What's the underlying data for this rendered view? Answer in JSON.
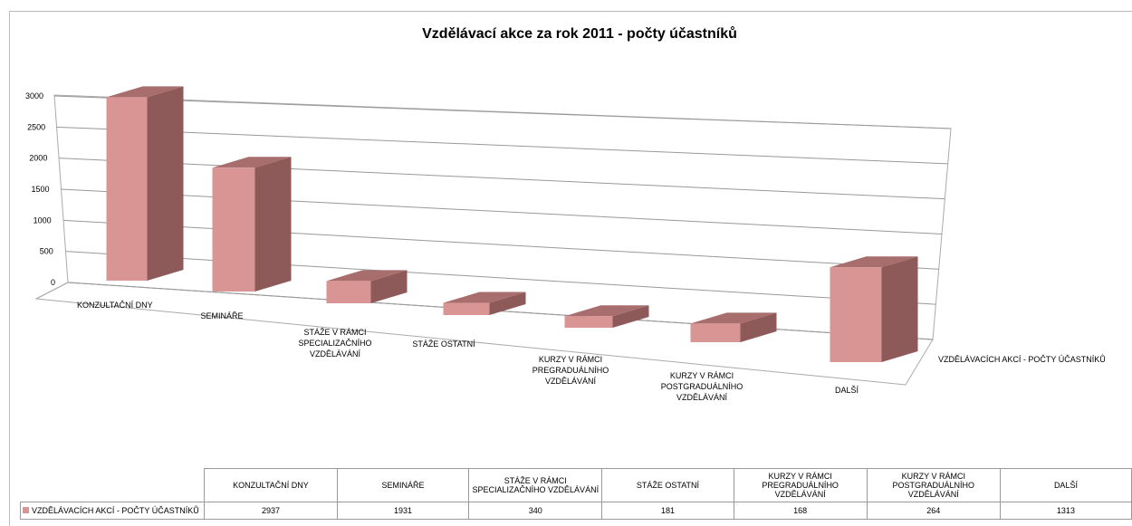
{
  "chart_data": {
    "type": "bar",
    "title": "Vzdělávací akce za rok 2011 - počty účastníků",
    "categories": [
      "KONZULTAČNÍ DNY",
      "SEMINÁŘE",
      "STÁŽE V RÁMCI SPECIALIZAČNÍHO VZDĚLÁVÁNÍ",
      "STÁŽE OSTATNÍ",
      "KURZY V RÁMCI PREGRADUÁLNÍHO VZDĚLÁVÁNÍ",
      "KURZY V RÁMCI POSTGRADUÁLNÍHO VZDĚLÁVÁNÍ",
      "DALŠÍ"
    ],
    "series": [
      {
        "name": "VZDĚLÁVACÍCH AKCÍ - POČTY ÚČASTNÍKŮ",
        "color": "#d99594",
        "values": [
          2937,
          1931,
          340,
          181,
          168,
          264,
          1313
        ]
      }
    ],
    "ylim": [
      0,
      3000
    ],
    "yticks": [
      0,
      500,
      1000,
      1500,
      2000,
      2500,
      3000
    ],
    "grid": true,
    "data_table": true
  }
}
